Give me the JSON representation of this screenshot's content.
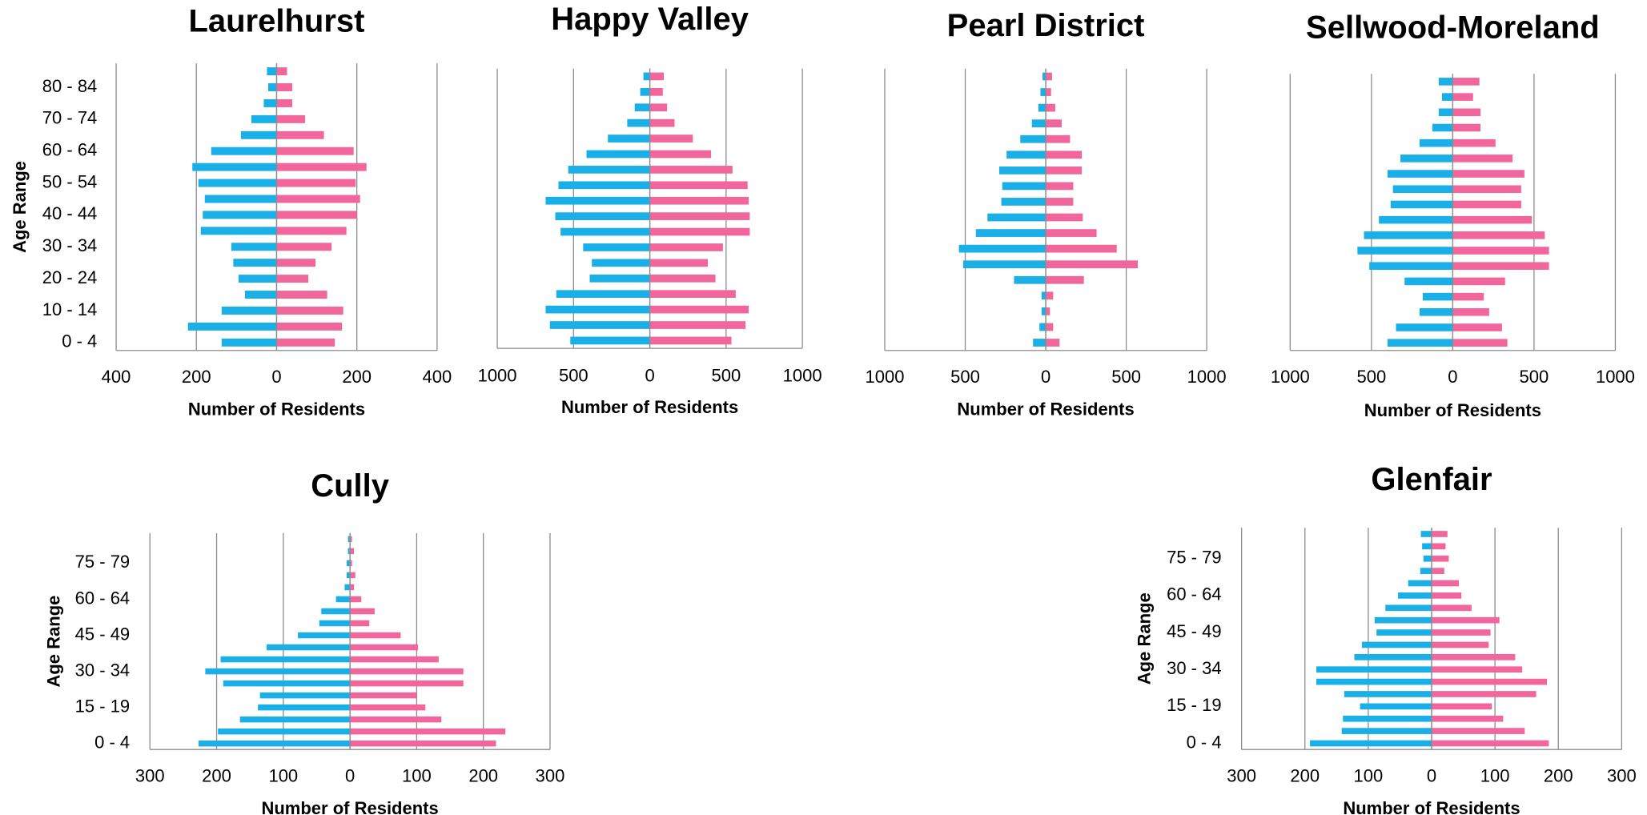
{
  "chart_data": [
    {
      "type": "bar",
      "orientation": "horizontal",
      "title": "Laurelhurst",
      "xlabel": "Number of Residents",
      "ylabel": "Age Range",
      "categories": [
        "0 - 4",
        null,
        "10 - 14",
        null,
        "20 - 24",
        null,
        "30 - 34",
        null,
        "40 - 44",
        null,
        "50 - 54",
        null,
        "60 - 64",
        null,
        "70 - 74",
        null,
        "80 - 84",
        null
      ],
      "series": [
        {
          "color": "#1aafe6",
          "values": [
            -137,
            -221,
            -137,
            -79,
            -95,
            -108,
            -113,
            -189,
            -184,
            -179,
            -195,
            -210,
            -163,
            -89,
            -63,
            -32,
            -21,
            -24
          ]
        },
        {
          "color": "#f2679b",
          "values": [
            145,
            163,
            166,
            126,
            79,
            97,
            137,
            174,
            200,
            208,
            197,
            224,
            192,
            118,
            71,
            39,
            39,
            26
          ]
        }
      ],
      "xlim": [
        -400,
        400
      ],
      "xticks": [
        {
          "value": -400,
          "label": "400"
        },
        {
          "value": -200,
          "label": "200"
        },
        0,
        200,
        400
      ],
      "grid": true
    },
    {
      "type": "bar",
      "orientation": "horizontal",
      "title": "Happy Valley",
      "xlabel": "Number of Residents",
      "categories": [
        null,
        null,
        null,
        null,
        null,
        null,
        null,
        null,
        null,
        null,
        null,
        null,
        null,
        null,
        null,
        null,
        null,
        null
      ],
      "series": [
        {
          "color": "#1aafe6",
          "values": [
            -521,
            -655,
            -683,
            -613,
            -394,
            -380,
            -437,
            -585,
            -620,
            -683,
            -599,
            -535,
            -415,
            -275,
            -148,
            -99,
            -63,
            -42
          ]
        },
        {
          "color": "#f2679b",
          "values": [
            535,
            627,
            648,
            563,
            430,
            380,
            479,
            655,
            655,
            648,
            641,
            542,
            401,
            282,
            162,
            113,
            85,
            92
          ]
        }
      ],
      "xlim": [
        -1000,
        1000
      ],
      "xticks": [
        {
          "value": -1000,
          "label": "1000"
        },
        {
          "value": -500,
          "label": "500"
        },
        0,
        500,
        1000
      ],
      "grid": true
    },
    {
      "type": "bar",
      "orientation": "horizontal",
      "title": "Pearl District",
      "xlabel": "Number of Residents",
      "categories": [
        null,
        null,
        null,
        null,
        null,
        null,
        null,
        null,
        null,
        null,
        null,
        null,
        null,
        null,
        null,
        null,
        null,
        null
      ],
      "series": [
        {
          "color": "#1aafe6",
          "values": [
            -79,
            -39,
            -26,
            -26,
            -197,
            -513,
            -539,
            -434,
            -362,
            -276,
            -270,
            -289,
            -243,
            -158,
            -86,
            -46,
            -33,
            -20
          ]
        },
        {
          "color": "#f2679b",
          "values": [
            86,
            46,
            26,
            46,
            237,
            572,
            441,
            316,
            230,
            171,
            171,
            224,
            224,
            151,
            99,
            59,
            33,
            39
          ]
        }
      ],
      "xlim": [
        -1000,
        1000
      ],
      "xticks": [
        {
          "value": -1000,
          "label": "1000"
        },
        {
          "value": -500,
          "label": "500"
        },
        0,
        500,
        1000
      ],
      "grid": true
    },
    {
      "type": "bar",
      "orientation": "horizontal",
      "title": "Sellwood-Moreland",
      "xlabel": "Number of Residents",
      "categories": [
        null,
        null,
        null,
        null,
        null,
        null,
        null,
        null,
        null,
        null,
        null,
        null,
        null,
        null,
        null,
        null,
        null,
        null
      ],
      "series": [
        {
          "color": "#1aafe6",
          "values": [
            -401,
            -349,
            -204,
            -184,
            -296,
            -513,
            -586,
            -546,
            -454,
            -382,
            -368,
            -401,
            -322,
            -204,
            -125,
            -86,
            -66,
            -86
          ]
        },
        {
          "color": "#f2679b",
          "values": [
            336,
            303,
            224,
            191,
            322,
            592,
            592,
            566,
            487,
            421,
            421,
            441,
            368,
            263,
            171,
            171,
            125,
            164
          ]
        }
      ],
      "xlim": [
        -1000,
        1000
      ],
      "xticks": [
        {
          "value": -1000,
          "label": "1000"
        },
        {
          "value": -500,
          "label": "500"
        },
        0,
        500,
        1000
      ],
      "grid": true
    },
    {
      "type": "bar",
      "orientation": "horizontal",
      "title": "Cully",
      "xlabel": "Number of Residents",
      "ylabel": "Age Range",
      "categories": [
        "0 - 4",
        null,
        null,
        "15 - 19",
        null,
        null,
        "30 - 34",
        null,
        null,
        "45 - 49",
        null,
        null,
        "60 - 64",
        null,
        null,
        "75 - 79",
        null,
        null
      ],
      "series": [
        {
          "color": "#1aafe6",
          "values": [
            -227,
            -198,
            -165,
            -138,
            -135,
            -190,
            -217,
            -194,
            -125,
            -78,
            -46,
            -43,
            -21,
            -8,
            -5,
            -5,
            -3,
            -3
          ]
        },
        {
          "color": "#f2679b",
          "values": [
            219,
            233,
            137,
            113,
            100,
            170,
            170,
            133,
            102,
            76,
            29,
            37,
            17,
            6,
            8,
            3,
            6,
            3
          ]
        }
      ],
      "xlim": [
        -300,
        300
      ],
      "xticks": [
        {
          "value": -300,
          "label": "300"
        },
        {
          "value": -200,
          "label": "200"
        },
        {
          "value": -100,
          "label": "100"
        },
        0,
        100,
        200,
        300
      ],
      "grid": true
    },
    {
      "type": "bar",
      "orientation": "horizontal",
      "title": "Glenfair",
      "xlabel": "Number of Residents",
      "ylabel": "Age Range",
      "categories": [
        "0 - 4",
        null,
        null,
        "15 - 19",
        null,
        null,
        "30 - 34",
        null,
        null,
        "45 - 49",
        null,
        null,
        "60 - 64",
        null,
        null,
        "75 - 79",
        null,
        null
      ],
      "series": [
        {
          "color": "#1aafe6",
          "values": [
            -192,
            -142,
            -140,
            -113,
            -138,
            -182,
            -182,
            -122,
            -110,
            -87,
            -90,
            -73,
            -53,
            -37,
            -18,
            -13,
            -15,
            -17
          ]
        },
        {
          "color": "#f2679b",
          "values": [
            185,
            147,
            113,
            95,
            165,
            182,
            143,
            132,
            90,
            93,
            107,
            63,
            47,
            43,
            20,
            27,
            22,
            25
          ]
        }
      ],
      "xlim": [
        -300,
        300
      ],
      "xticks": [
        {
          "value": -300,
          "label": "300"
        },
        {
          "value": -200,
          "label": "200"
        },
        {
          "value": -100,
          "label": "100"
        },
        0,
        100,
        200,
        300
      ],
      "grid": true
    }
  ]
}
